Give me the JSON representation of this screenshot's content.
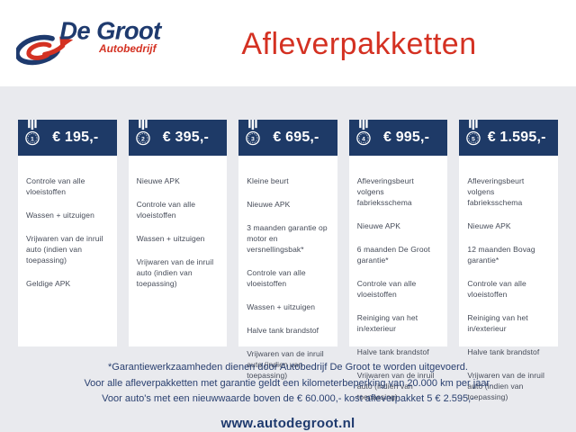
{
  "brand": {
    "name": "De Groot",
    "sub": "Autobedrijf"
  },
  "page_title": "Afleverpakketten",
  "colors": {
    "navy": "#1e3a67",
    "red": "#d43122",
    "background": "#e9eaee",
    "card": "#ffffff"
  },
  "cards": [
    {
      "number": "1",
      "price": "€ 195,-",
      "items": [
        "Controle van alle vloeistoffen",
        "Wassen + uitzuigen",
        "Vrijwaren van de inruil auto (indien van toepassing)",
        "Geldige APK"
      ]
    },
    {
      "number": "2",
      "price": "€ 395,-",
      "items": [
        "Nieuwe APK",
        "Controle van alle vloeistoffen",
        "Wassen + uitzuigen",
        "Vrijwaren van de inruil auto (indien van toepassing)"
      ]
    },
    {
      "number": "3",
      "price": "€ 695,-",
      "items": [
        "Kleine beurt",
        "Nieuwe APK",
        "3 maanden garantie op motor en versnellingsbak*",
        "Controle van alle vloeistoffen",
        "Wassen + uitzuigen",
        "Halve tank brandstof",
        "Vrijwaren van de inruil auto (indien van toepassing)"
      ]
    },
    {
      "number": "4",
      "price": "€ 995,-",
      "items": [
        "Afleveringsbeurt volgens fabrieksschema",
        "Nieuwe APK",
        "6 maanden De Groot garantie*",
        "Controle van alle vloeistoffen",
        "Reiniging van het in/exterieur",
        "Halve tank brandstof",
        "Vrijwaren van de inruil auto (indien van toepassing)"
      ]
    },
    {
      "number": "5",
      "price": "€ 1.595,-",
      "items": [
        "Afleveringsbeurt volgens fabrieksschema",
        "Nieuwe APK",
        "12 maanden Bovag garantie*",
        "Controle van alle vloeistoffen",
        "Reiniging van het in/exterieur",
        "Halve tank brandstof",
        "Vrijwaren van de inruil auto (indien van toepassing)"
      ]
    }
  ],
  "footer": {
    "notes": [
      "*Garantiewerkzaamheden dienen door Autobedrijf De Groot te worden uitgevoerd.",
      "Voor alle afleverpakketten met garantie geldt een kilometerbeperking van 20.000 km per jaar.",
      "Voor auto's met een nieuwwaarde boven de € 60.000,- kost afleverpakket 5 € 2.595,-"
    ],
    "website": "www.autodegroot.nl"
  }
}
